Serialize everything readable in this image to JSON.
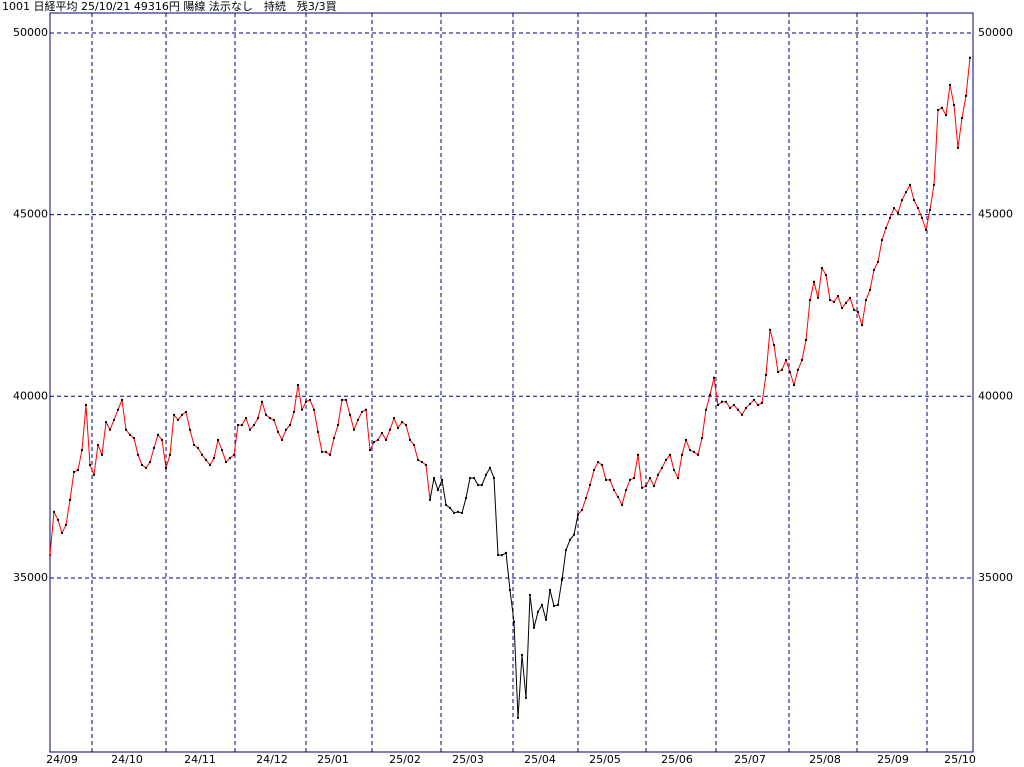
{
  "chart_data": {
    "type": "line",
    "title": "1001 日経平均 25/10/21 49316円 陽線 法示なし　持続　残3/3買",
    "ylim": [
      30210,
      50550
    ],
    "yticks": [
      35000,
      40000,
      45000,
      50000
    ],
    "xlim": [
      0,
      230.75
    ],
    "xgrid": [
      10.5,
      29,
      46.25,
      64,
      80.5,
      97.75,
      115.75,
      132,
      149,
      166.5,
      184.75,
      201.75,
      219.25
    ],
    "xticks": [
      {
        "value": 3,
        "label": "24/09"
      },
      {
        "value": 19.25,
        "label": "24/10"
      },
      {
        "value": 37.5,
        "label": "24/11"
      },
      {
        "value": 55.5,
        "label": "24/12"
      },
      {
        "value": 70.75,
        "label": "25/01"
      },
      {
        "value": 88.75,
        "label": "25/02"
      },
      {
        "value": 104.5,
        "label": "25/03"
      },
      {
        "value": 122.5,
        "label": "25/04"
      },
      {
        "value": 138.75,
        "label": "25/05"
      },
      {
        "value": 156.75,
        "label": "25/06"
      },
      {
        "value": 175,
        "label": "25/07"
      },
      {
        "value": 193.75,
        "label": "25/08"
      },
      {
        "value": 210.75,
        "label": "25/09"
      },
      {
        "value": 227.5,
        "label": "25/10"
      }
    ],
    "grid": true,
    "grid_color": "#000080",
    "frame_color": "#000080",
    "marker_color": "#000000",
    "values": [
      35630,
      36820,
      36600,
      36240,
      36460,
      37150,
      37920,
      37970,
      38520,
      39760,
      38110,
      37840,
      38660,
      38390,
      39290,
      39080,
      39350,
      39630,
      39900,
      39080,
      38940,
      38850,
      38390,
      38110,
      38030,
      38190,
      38580,
      38940,
      38800,
      38030,
      38390,
      39490,
      39350,
      39490,
      39570,
      39080,
      38660,
      38580,
      38390,
      38250,
      38110,
      38300,
      38800,
      38520,
      38190,
      38300,
      38390,
      39210,
      39210,
      39400,
      39080,
      39210,
      39400,
      39850,
      39490,
      39400,
      39350,
      39020,
      38800,
      39080,
      39210,
      39570,
      40310,
      39630,
      39850,
      39900,
      39630,
      39020,
      38470,
      38470,
      38390,
      38850,
      39210,
      39900,
      39900,
      39490,
      39080,
      39350,
      39570,
      39630,
      38520,
      38740,
      38800,
      38990,
      38800,
      39080,
      39400,
      39130,
      39290,
      39210,
      38800,
      38660,
      38250,
      38190,
      38110,
      37150,
      37750,
      37420,
      37700,
      37010,
      36930,
      36790,
      36820,
      36790,
      37200,
      37750,
      37750,
      37560,
      37560,
      37840,
      38030,
      37750,
      35630,
      35630,
      35690,
      34670,
      33790,
      31150,
      32880,
      31700,
      34530,
      33630,
      34070,
      34260,
      33850,
      34670,
      34230,
      34260,
      34950,
      35770,
      36050,
      36190,
      36740,
      36870,
      37200,
      37560,
      37970,
      38190,
      38110,
      37700,
      37700,
      37420,
      37230,
      37010,
      37420,
      37700,
      37750,
      38390,
      37480,
      37530,
      37750,
      37530,
      37840,
      38030,
      38250,
      38390,
      37970,
      37750,
      38390,
      38800,
      38520,
      38470,
      38390,
      38850,
      39630,
      40040,
      40510,
      39760,
      39850,
      39850,
      39680,
      39760,
      39630,
      39490,
      39680,
      39790,
      39900,
      39760,
      39820,
      40590,
      41830,
      41410,
      40670,
      40730,
      41000,
      40670,
      40310,
      40730,
      41000,
      41550,
      42650,
      43150,
      42710,
      43530,
      43340,
      42650,
      42600,
      42760,
      42430,
      42570,
      42710,
      42380,
      42320,
      41960,
      42650,
      42930,
      43480,
      43700,
      44300,
      44630,
      44910,
      45180,
      45050,
      45400,
      45620,
      45820,
      45400,
      45180,
      44910,
      44580,
      45130,
      45820,
      47880,
      47940,
      47740,
      48570,
      48020,
      46840,
      47660,
      48270,
      49316
    ],
    "colors": [
      "#f00",
      "#f00",
      "#f00",
      "#f00",
      "#f00",
      "#f00",
      "#f00",
      "#f00",
      "#f00",
      "#f00",
      "#f00",
      "#f00",
      "#f00",
      "#f00",
      "#f00",
      "#f00",
      "#f00",
      "#f00",
      "#f00",
      "#f00",
      "#f00",
      "#f00",
      "#f00",
      "#f00",
      "#f00",
      "#f00",
      "#f00",
      "#f00",
      "#f00",
      "#f00",
      "#f00",
      "#f00",
      "#f00",
      "#f00",
      "#f00",
      "#f00",
      "#f00",
      "#f00",
      "#f00",
      "#f00",
      "#f00",
      "#f00",
      "#f00",
      "#f00",
      "#f00",
      "#f00",
      "#f00",
      "#f00",
      "#f00",
      "#f00",
      "#f00",
      "#f00",
      "#f00",
      "#f00",
      "#f00",
      "#f00",
      "#f00",
      "#f00",
      "#f00",
      "#f00",
      "#f00",
      "#f00",
      "#f00",
      "#f00",
      "#f00",
      "#f00",
      "#f00",
      "#f00",
      "#f00",
      "#f00",
      "#f00",
      "#f00",
      "#f00",
      "#f00",
      "#f00",
      "#f00",
      "#f00",
      "#f00",
      "#f00",
      "#f00",
      "#f00",
      "#f00",
      "#f00",
      "#f00",
      "#f00",
      "#f00",
      "#f00",
      "#f00",
      "#f00",
      "#f00",
      "#f00",
      "#f00",
      "#f00",
      "#f00",
      "#f00",
      "#f00",
      "#000",
      "#000",
      "#000",
      "#000",
      "#000",
      "#000",
      "#000",
      "#000",
      "#000",
      "#000",
      "#000",
      "#000",
      "#000",
      "#000",
      "#000",
      "#000",
      "#000",
      "#000",
      "#000",
      "#000",
      "#000",
      "#000",
      "#000",
      "#000",
      "#000",
      "#000",
      "#000",
      "#000",
      "#000",
      "#000",
      "#000",
      "#000",
      "#000",
      "#000",
      "#000",
      "#000",
      "#000",
      "#f00",
      "#f00",
      "#f00",
      "#f00",
      "#f00",
      "#f00",
      "#f00",
      "#f00",
      "#f00",
      "#f00",
      "#f00",
      "#f00",
      "#f00",
      "#f00",
      "#f00",
      "#f00",
      "#f00",
      "#f00",
      "#f00",
      "#f00",
      "#f00",
      "#f00",
      "#f00",
      "#f00",
      "#f00",
      "#f00",
      "#f00",
      "#f00",
      "#f00",
      "#f00",
      "#f00",
      "#f00",
      "#f00",
      "#f00",
      "#f00",
      "#f00",
      "#f00",
      "#f00",
      "#f00",
      "#f00",
      "#f00",
      "#f00",
      "#f00",
      "#f00",
      "#f00",
      "#f00",
      "#f00",
      "#f00",
      "#f00",
      "#f00",
      "#f00",
      "#f00",
      "#f00",
      "#f00",
      "#f00",
      "#f00",
      "#f00",
      "#f00",
      "#f00",
      "#f00",
      "#f00",
      "#f00",
      "#f00",
      "#f00",
      "#f00",
      "#f00",
      "#f00",
      "#f00",
      "#f00",
      "#f00",
      "#f00",
      "#f00",
      "#f00",
      "#f00",
      "#f00",
      "#f00",
      "#f00",
      "#f00",
      "#f00",
      "#f00",
      "#f00",
      "#f00",
      "#f00",
      "#f00",
      "#f00",
      "#f00",
      "#f00",
      "#f00",
      "#f00",
      "#f00",
      "#f00",
      "#f00",
      "#f00",
      "#f00",
      "#f00",
      "#f00",
      "#f00",
      "#f00"
    ]
  }
}
